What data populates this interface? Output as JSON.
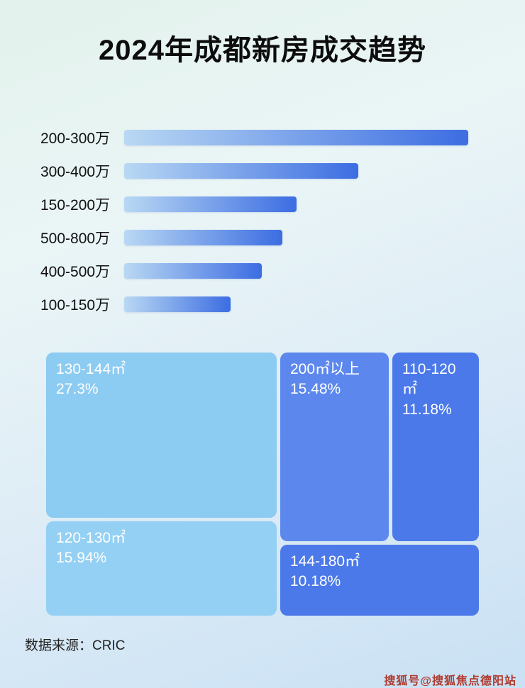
{
  "page": {
    "title": "2024年成都新房成交趋势",
    "source": "数据来源：CRIC",
    "watermark": "搜狐号@搜狐焦点德阳站"
  },
  "colors": {
    "bar_gradient_start": "#b9d8f3",
    "bar_gradient_end": "#3c6de2",
    "treemap_light": "#8ccbf2",
    "treemap_light2": "#93d0f4",
    "treemap_medium": "#5c88ee",
    "treemap_dark": "#4b79e9",
    "watermark_color": "#b03a2e"
  },
  "chart_data": [
    {
      "type": "bar",
      "orientation": "horizontal",
      "title": "2024年成都新房成交趋势",
      "categories": [
        "200-300万",
        "300-400万",
        "150-200万",
        "500-800万",
        "400-500万",
        "100-150万"
      ],
      "values": [
        100,
        68,
        50,
        46,
        40,
        31
      ],
      "value_note": "relative bar lengths as % of longest bar; no numeric labels shown in image",
      "xlabel": "",
      "ylabel": "",
      "grid": false,
      "legend": false
    },
    {
      "type": "treemap",
      "items": [
        {
          "label": "130-144㎡",
          "value": 27.3,
          "value_label": "27.3%"
        },
        {
          "label": "120-130㎡",
          "value": 15.94,
          "value_label": "15.94%"
        },
        {
          "label": "200㎡以上",
          "value": 15.48,
          "value_label": "15.48%"
        },
        {
          "label": "110-120㎡",
          "value": 11.18,
          "value_label": "11.18%"
        },
        {
          "label": "144-180㎡",
          "value": 10.18,
          "value_label": "10.18%"
        }
      ]
    }
  ]
}
